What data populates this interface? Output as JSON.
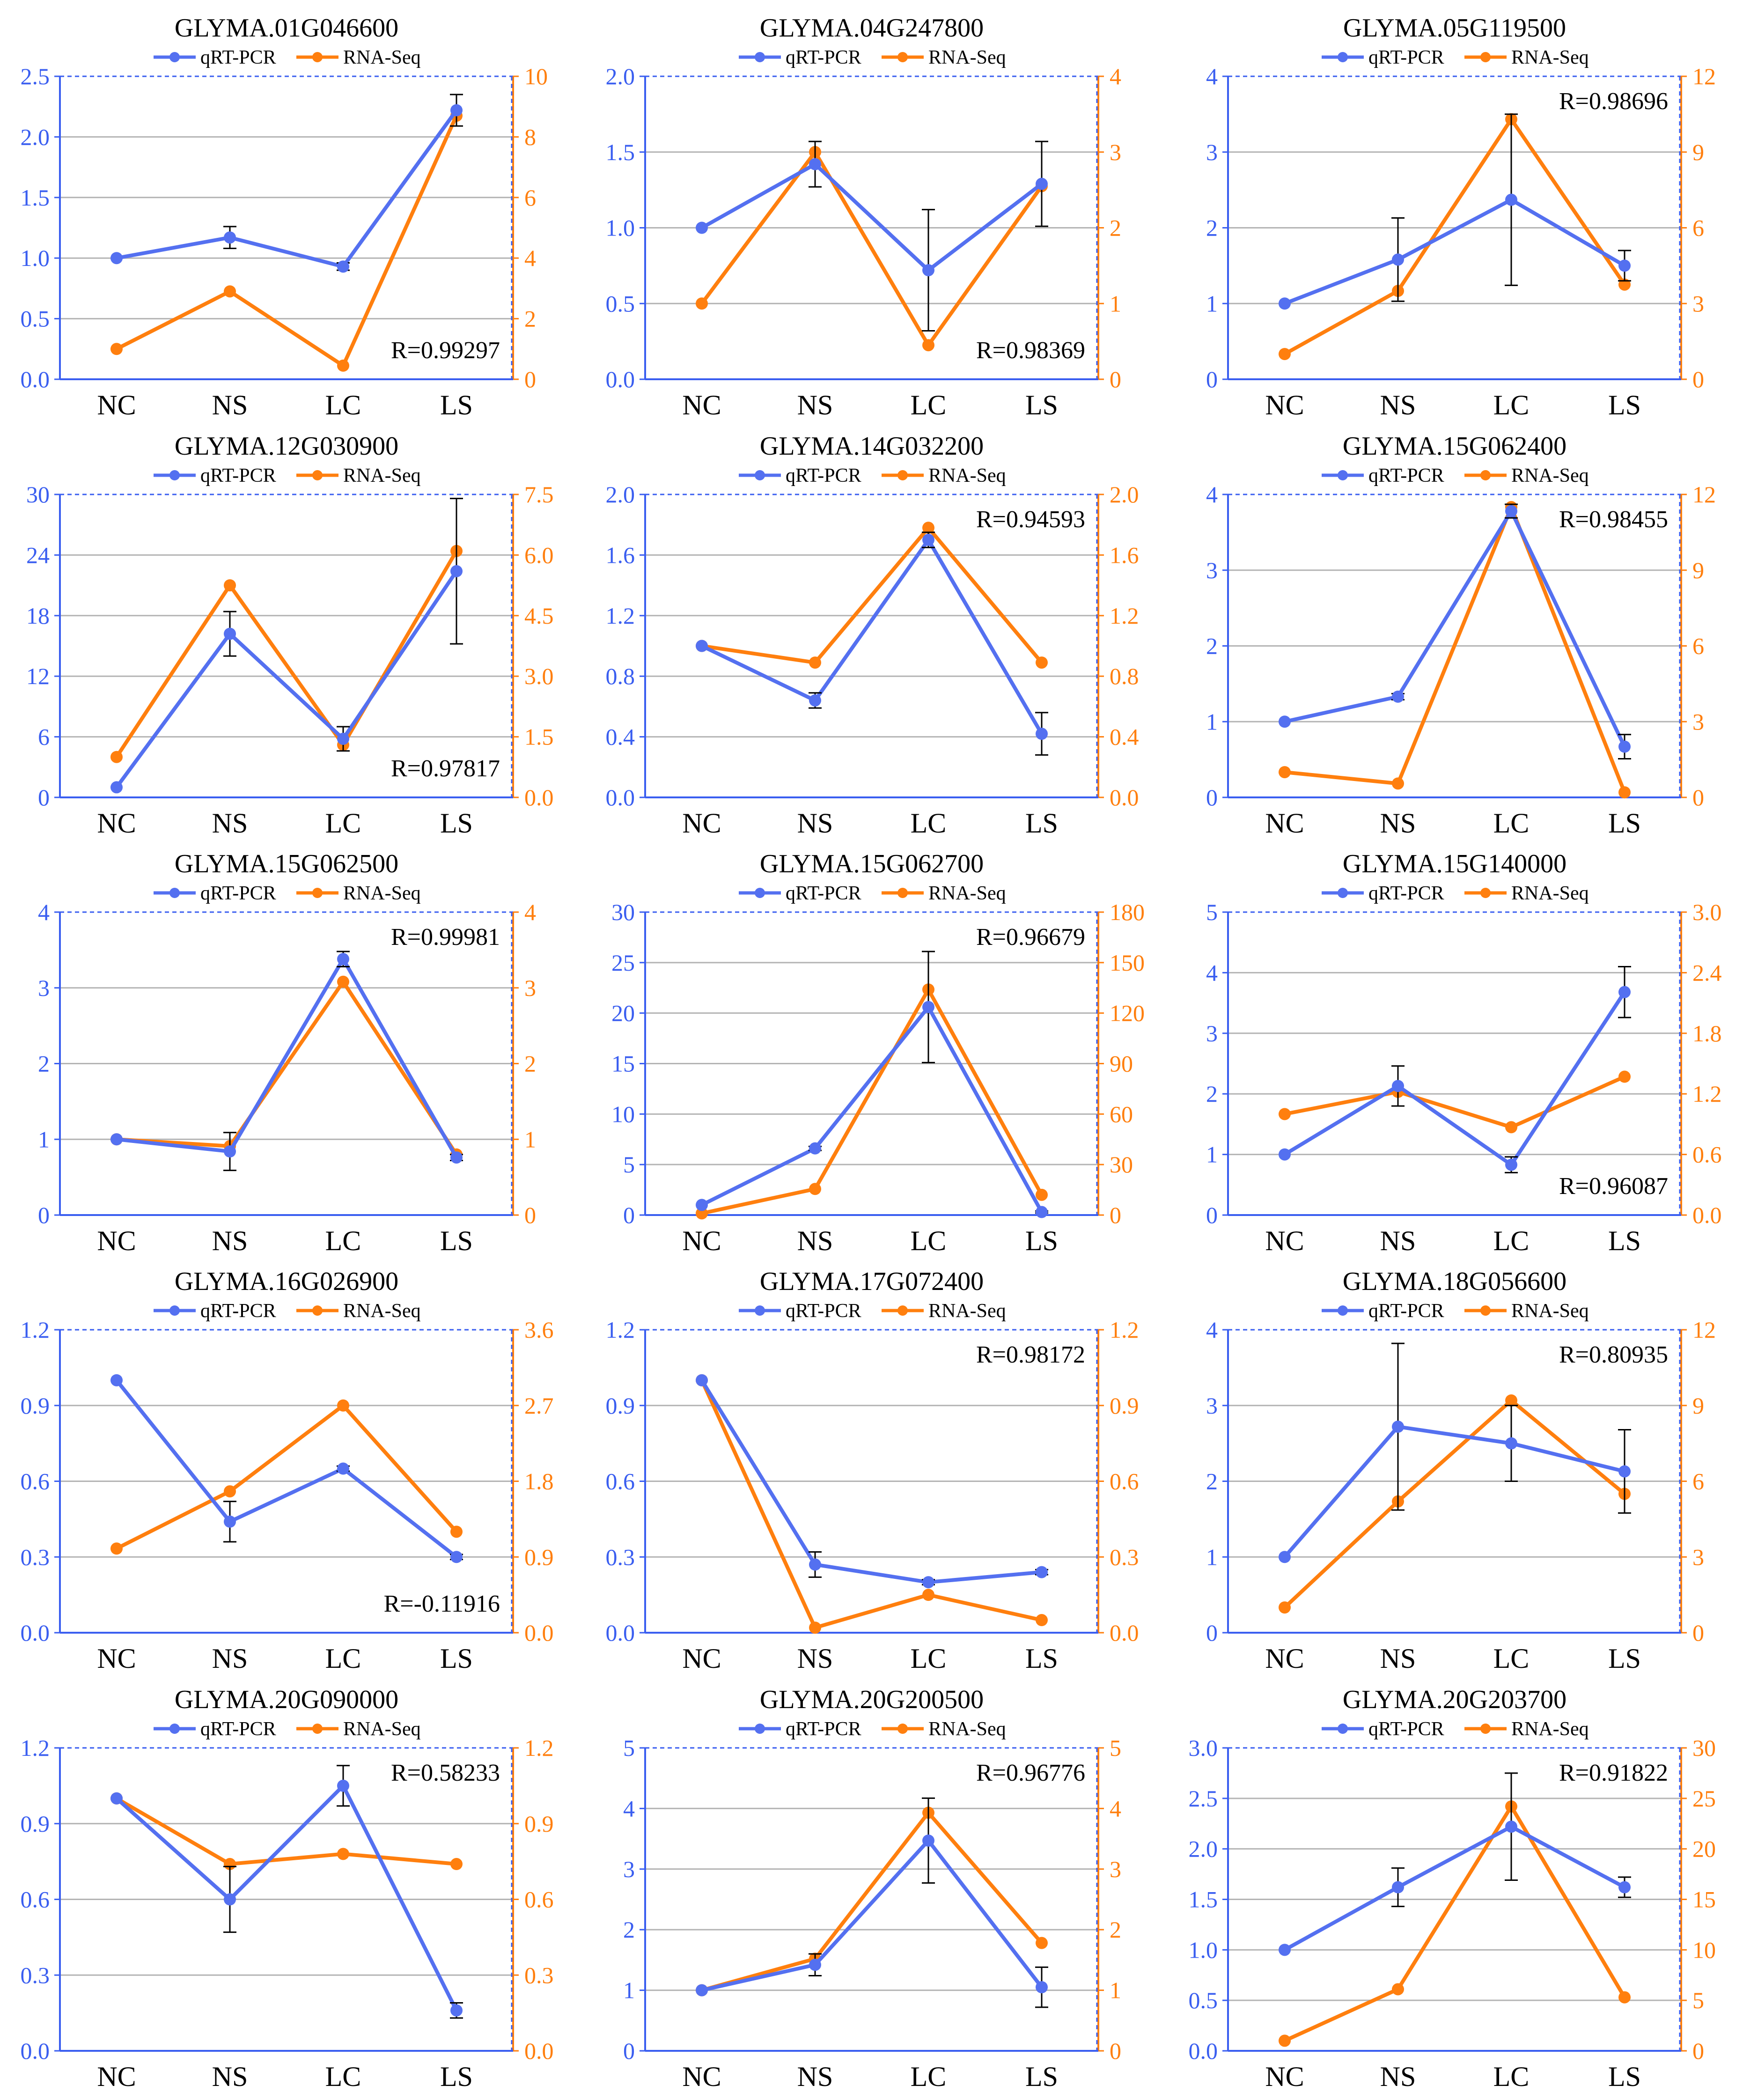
{
  "colors": {
    "qrt": "#5470f0",
    "rna": "#ff7f0e",
    "grid": "#b4b4b4",
    "frame": "#3a5ef0",
    "axis_left": "#3a5ef0",
    "axis_right": "#ff7f0e",
    "text": "#000000",
    "error": "#000000"
  },
  "legend": {
    "qrt_label": "qRT-PCR",
    "rna_label": "RNA-Seq"
  },
  "chart_data": [
    {
      "type": "line",
      "title": "GLYMA.01G046600",
      "categories": [
        "NC",
        "NS",
        "LC",
        "LS"
      ],
      "left_axis": {
        "ylim": [
          0,
          2.5
        ],
        "ticks": [
          "0.0",
          "0.5",
          "1.0",
          "1.5",
          "2.0",
          "2.5"
        ]
      },
      "right_axis": {
        "ylim": [
          0,
          10
        ],
        "ticks": [
          "0",
          "2",
          "4",
          "6",
          "8",
          "10"
        ]
      },
      "series": [
        {
          "name": "qRT-PCR",
          "axis": "left",
          "values": [
            1.0,
            1.17,
            0.93,
            2.22
          ],
          "errors": [
            0,
            0.09,
            0.03,
            0.13
          ]
        },
        {
          "name": "RNA-Seq",
          "axis": "right",
          "values": [
            1.0,
            2.9,
            0.45,
            8.7
          ]
        }
      ],
      "r_label": "R=0.99297",
      "r_position": "bottom-right"
    },
    {
      "type": "line",
      "title": "GLYMA.04G247800",
      "categories": [
        "NC",
        "NS",
        "LC",
        "LS"
      ],
      "left_axis": {
        "ylim": [
          0,
          2.0
        ],
        "ticks": [
          "0.0",
          "0.5",
          "1.0",
          "1.5",
          "2.0"
        ]
      },
      "right_axis": {
        "ylim": [
          0,
          4
        ],
        "ticks": [
          "0",
          "1",
          "2",
          "3",
          "4"
        ]
      },
      "series": [
        {
          "name": "qRT-PCR",
          "axis": "left",
          "values": [
            1.0,
            1.42,
            0.72,
            1.29
          ],
          "errors": [
            0,
            0.15,
            0.4,
            0.28
          ]
        },
        {
          "name": "RNA-Seq",
          "axis": "right",
          "values": [
            1.0,
            3.0,
            0.45,
            2.55
          ]
        }
      ],
      "r_label": "R=0.98369",
      "r_position": "bottom-right"
    },
    {
      "type": "line",
      "title": "GLYMA.05G119500",
      "categories": [
        "NC",
        "NS",
        "LC",
        "LS"
      ],
      "left_axis": {
        "ylim": [
          0,
          4
        ],
        "ticks": [
          "0",
          "1",
          "2",
          "3",
          "4"
        ]
      },
      "right_axis": {
        "ylim": [
          0,
          12
        ],
        "ticks": [
          "0",
          "3",
          "6",
          "9",
          "12"
        ]
      },
      "series": [
        {
          "name": "qRT-PCR",
          "axis": "left",
          "values": [
            1.0,
            1.58,
            2.37,
            1.5
          ],
          "errors": [
            0,
            0.55,
            1.13,
            0.2
          ]
        },
        {
          "name": "RNA-Seq",
          "axis": "right",
          "values": [
            1.0,
            3.5,
            10.3,
            3.75
          ]
        }
      ],
      "r_label": "R=0.98696",
      "r_position": "top-right"
    },
    {
      "type": "line",
      "title": "GLYMA.12G030900",
      "categories": [
        "NC",
        "NS",
        "LC",
        "LS"
      ],
      "left_axis": {
        "ylim": [
          0,
          30
        ],
        "ticks": [
          "0",
          "6",
          "12",
          "18",
          "24",
          "30"
        ]
      },
      "right_axis": {
        "ylim": [
          0,
          7.5
        ],
        "ticks": [
          "0.0",
          "1.5",
          "3.0",
          "4.5",
          "6.0",
          "7.5"
        ]
      },
      "series": [
        {
          "name": "qRT-PCR",
          "axis": "left",
          "values": [
            1.0,
            16.2,
            5.8,
            22.4
          ],
          "errors": [
            0,
            2.2,
            1.2,
            7.2
          ]
        },
        {
          "name": "RNA-Seq",
          "axis": "right",
          "values": [
            1.0,
            5.25,
            1.3,
            6.1
          ]
        }
      ],
      "r_label": "R=0.97817",
      "r_position": "bottom-right"
    },
    {
      "type": "line",
      "title": "GLYMA.14G032200",
      "categories": [
        "NC",
        "NS",
        "LC",
        "LS"
      ],
      "left_axis": {
        "ylim": [
          0,
          2.0
        ],
        "ticks": [
          "0.0",
          "0.4",
          "0.8",
          "1.2",
          "1.6",
          "2.0"
        ]
      },
      "right_axis": {
        "ylim": [
          0,
          2.0
        ],
        "ticks": [
          "0.0",
          "0.4",
          "0.8",
          "1.2",
          "1.6",
          "2.0"
        ]
      },
      "series": [
        {
          "name": "qRT-PCR",
          "axis": "left",
          "values": [
            1.0,
            0.64,
            1.7,
            0.42
          ],
          "errors": [
            0,
            0.05,
            0.05,
            0.14
          ]
        },
        {
          "name": "RNA-Seq",
          "axis": "right",
          "values": [
            1.0,
            0.89,
            1.78,
            0.89
          ]
        }
      ],
      "r_label": "R=0.94593",
      "r_position": "top-right"
    },
    {
      "type": "line",
      "title": "GLYMA.15G062400",
      "categories": [
        "NC",
        "NS",
        "LC",
        "LS"
      ],
      "left_axis": {
        "ylim": [
          0,
          4
        ],
        "ticks": [
          "0",
          "1",
          "2",
          "3",
          "4"
        ]
      },
      "right_axis": {
        "ylim": [
          0,
          12
        ],
        "ticks": [
          "0",
          "3",
          "6",
          "9",
          "12"
        ]
      },
      "series": [
        {
          "name": "qRT-PCR",
          "axis": "left",
          "values": [
            1.0,
            1.33,
            3.78,
            0.67
          ],
          "errors": [
            0,
            0.04,
            0.09,
            0.16
          ]
        },
        {
          "name": "RNA-Seq",
          "axis": "right",
          "values": [
            1.0,
            0.55,
            11.5,
            0.2
          ]
        }
      ],
      "r_label": "R=0.98455",
      "r_position": "top-right"
    },
    {
      "type": "line",
      "title": "GLYMA.15G062500",
      "categories": [
        "NC",
        "NS",
        "LC",
        "LS"
      ],
      "left_axis": {
        "ylim": [
          0,
          4
        ],
        "ticks": [
          "0",
          "1",
          "2",
          "3",
          "4"
        ]
      },
      "right_axis": {
        "ylim": [
          0,
          4
        ],
        "ticks": [
          "0",
          "1",
          "2",
          "3",
          "4"
        ]
      },
      "series": [
        {
          "name": "qRT-PCR",
          "axis": "left",
          "values": [
            1.0,
            0.84,
            3.38,
            0.76
          ],
          "errors": [
            0,
            0.25,
            0.1,
            0.04
          ]
        },
        {
          "name": "RNA-Seq",
          "axis": "right",
          "values": [
            1.0,
            0.91,
            3.08,
            0.8
          ]
        }
      ],
      "r_label": "R=0.99981",
      "r_position": "top-right"
    },
    {
      "type": "line",
      "title": "GLYMA.15G062700",
      "categories": [
        "NC",
        "NS",
        "LC",
        "LS"
      ],
      "left_axis": {
        "ylim": [
          0,
          30
        ],
        "ticks": [
          "0",
          "5",
          "10",
          "15",
          "20",
          "25",
          "30"
        ]
      },
      "right_axis": {
        "ylim": [
          0,
          180
        ],
        "ticks": [
          "0",
          "30",
          "60",
          "90",
          "120",
          "150",
          "180"
        ]
      },
      "series": [
        {
          "name": "qRT-PCR",
          "axis": "left",
          "values": [
            1.0,
            6.6,
            20.6,
            0.3
          ],
          "errors": [
            0,
            0.2,
            5.5,
            0.1
          ]
        },
        {
          "name": "RNA-Seq",
          "axis": "right",
          "values": [
            1.0,
            15.5,
            134,
            12
          ]
        }
      ],
      "r_label": "R=0.96679",
      "r_position": "top-right"
    },
    {
      "type": "line",
      "title": "GLYMA.15G140000",
      "categories": [
        "NC",
        "NS",
        "LC",
        "LS"
      ],
      "left_axis": {
        "ylim": [
          0,
          5
        ],
        "ticks": [
          "0",
          "1",
          "2",
          "3",
          "4",
          "5"
        ]
      },
      "right_axis": {
        "ylim": [
          0,
          3.0
        ],
        "ticks": [
          "0.0",
          "0.6",
          "1.2",
          "1.8",
          "2.4",
          "3.0"
        ]
      },
      "series": [
        {
          "name": "qRT-PCR",
          "axis": "left",
          "values": [
            1.0,
            2.13,
            0.83,
            3.68
          ],
          "errors": [
            0,
            0.33,
            0.13,
            0.42
          ]
        },
        {
          "name": "RNA-Seq",
          "axis": "right",
          "values": [
            1.0,
            1.22,
            0.87,
            1.37
          ]
        }
      ],
      "r_label": "R=0.96087",
      "r_position": "bottom-right"
    },
    {
      "type": "line",
      "title": "GLYMA.16G026900",
      "categories": [
        "NC",
        "NS",
        "LC",
        "LS"
      ],
      "left_axis": {
        "ylim": [
          0,
          1.2
        ],
        "ticks": [
          "0.0",
          "0.3",
          "0.6",
          "0.9",
          "1.2"
        ]
      },
      "right_axis": {
        "ylim": [
          0,
          3.6
        ],
        "ticks": [
          "0.0",
          "0.9",
          "1.8",
          "2.7",
          "3.6"
        ]
      },
      "series": [
        {
          "name": "qRT-PCR",
          "axis": "left",
          "values": [
            1.0,
            0.44,
            0.65,
            0.3
          ],
          "errors": [
            0,
            0.08,
            0.01,
            0.01
          ]
        },
        {
          "name": "RNA-Seq",
          "axis": "right",
          "values": [
            1.0,
            1.68,
            2.7,
            1.2
          ]
        }
      ],
      "r_label": "R=-0.11916",
      "r_position": "bottom-right"
    },
    {
      "type": "line",
      "title": "GLYMA.17G072400",
      "categories": [
        "NC",
        "NS",
        "LC",
        "LS"
      ],
      "left_axis": {
        "ylim": [
          0,
          1.2
        ],
        "ticks": [
          "0.0",
          "0.3",
          "0.6",
          "0.9",
          "1.2"
        ]
      },
      "right_axis": {
        "ylim": [
          0,
          1.2
        ],
        "ticks": [
          "0.0",
          "0.3",
          "0.6",
          "0.9",
          "1.2"
        ]
      },
      "series": [
        {
          "name": "qRT-PCR",
          "axis": "left",
          "values": [
            1.0,
            0.27,
            0.2,
            0.24
          ],
          "errors": [
            0,
            0.05,
            0.01,
            0.01
          ]
        },
        {
          "name": "RNA-Seq",
          "axis": "right",
          "values": [
            1.0,
            0.02,
            0.15,
            0.05
          ]
        }
      ],
      "r_label": "R=0.98172",
      "r_position": "top-right"
    },
    {
      "type": "line",
      "title": "GLYMA.18G056600",
      "categories": [
        "NC",
        "NS",
        "LC",
        "LS"
      ],
      "left_axis": {
        "ylim": [
          0,
          4
        ],
        "ticks": [
          "0",
          "1",
          "2",
          "3",
          "4"
        ]
      },
      "right_axis": {
        "ylim": [
          0,
          12
        ],
        "ticks": [
          "0",
          "3",
          "6",
          "9",
          "12"
        ]
      },
      "series": [
        {
          "name": "qRT-PCR",
          "axis": "left",
          "values": [
            1.0,
            2.72,
            2.5,
            2.13
          ],
          "errors": [
            0,
            1.1,
            0.5,
            0.55
          ]
        },
        {
          "name": "RNA-Seq",
          "axis": "right",
          "values": [
            1.0,
            5.2,
            9.2,
            5.5
          ]
        }
      ],
      "r_label": "R=0.80935",
      "r_position": "top-right"
    },
    {
      "type": "line",
      "title": "GLYMA.20G090000",
      "categories": [
        "NC",
        "NS",
        "LC",
        "LS"
      ],
      "left_axis": {
        "ylim": [
          0,
          1.2
        ],
        "ticks": [
          "0.0",
          "0.3",
          "0.6",
          "0.9",
          "1.2"
        ]
      },
      "right_axis": {
        "ylim": [
          0,
          1.2
        ],
        "ticks": [
          "0.0",
          "0.3",
          "0.6",
          "0.9",
          "1.2"
        ]
      },
      "series": [
        {
          "name": "qRT-PCR",
          "axis": "left",
          "values": [
            1.0,
            0.6,
            1.05,
            0.16
          ],
          "errors": [
            0,
            0.13,
            0.08,
            0.03
          ]
        },
        {
          "name": "RNA-Seq",
          "axis": "right",
          "values": [
            1.0,
            0.74,
            0.78,
            0.74
          ]
        }
      ],
      "r_label": "R=0.58233",
      "r_position": "top-right"
    },
    {
      "type": "line",
      "title": "GLYMA.20G200500",
      "categories": [
        "NC",
        "NS",
        "LC",
        "LS"
      ],
      "left_axis": {
        "ylim": [
          0,
          5
        ],
        "ticks": [
          "0",
          "1",
          "2",
          "3",
          "4",
          "5"
        ]
      },
      "right_axis": {
        "ylim": [
          0,
          5
        ],
        "ticks": [
          "0",
          "1",
          "2",
          "3",
          "4",
          "5"
        ]
      },
      "series": [
        {
          "name": "qRT-PCR",
          "axis": "left",
          "values": [
            1.0,
            1.42,
            3.47,
            1.05
          ],
          "errors": [
            0,
            0.18,
            0.7,
            0.33
          ]
        },
        {
          "name": "RNA-Seq",
          "axis": "right",
          "values": [
            1.0,
            1.52,
            3.93,
            1.78
          ]
        }
      ],
      "r_label": "R=0.96776",
      "r_position": "top-right"
    },
    {
      "type": "line",
      "title": "GLYMA.20G203700",
      "categories": [
        "NC",
        "NS",
        "LC",
        "LS"
      ],
      "left_axis": {
        "ylim": [
          0,
          3.0
        ],
        "ticks": [
          "0.0",
          "0.5",
          "1.0",
          "1.5",
          "2.0",
          "2.5",
          "3.0"
        ]
      },
      "right_axis": {
        "ylim": [
          0,
          30
        ],
        "ticks": [
          "0",
          "5",
          "10",
          "15",
          "20",
          "25",
          "30"
        ]
      },
      "series": [
        {
          "name": "qRT-PCR",
          "axis": "left",
          "values": [
            1.0,
            1.62,
            2.22,
            1.62
          ],
          "errors": [
            0,
            0.19,
            0.53,
            0.1
          ]
        },
        {
          "name": "RNA-Seq",
          "axis": "right",
          "values": [
            1.0,
            6.1,
            24.2,
            5.3
          ]
        }
      ],
      "r_label": "R=0.91822",
      "r_position": "top-right"
    }
  ]
}
